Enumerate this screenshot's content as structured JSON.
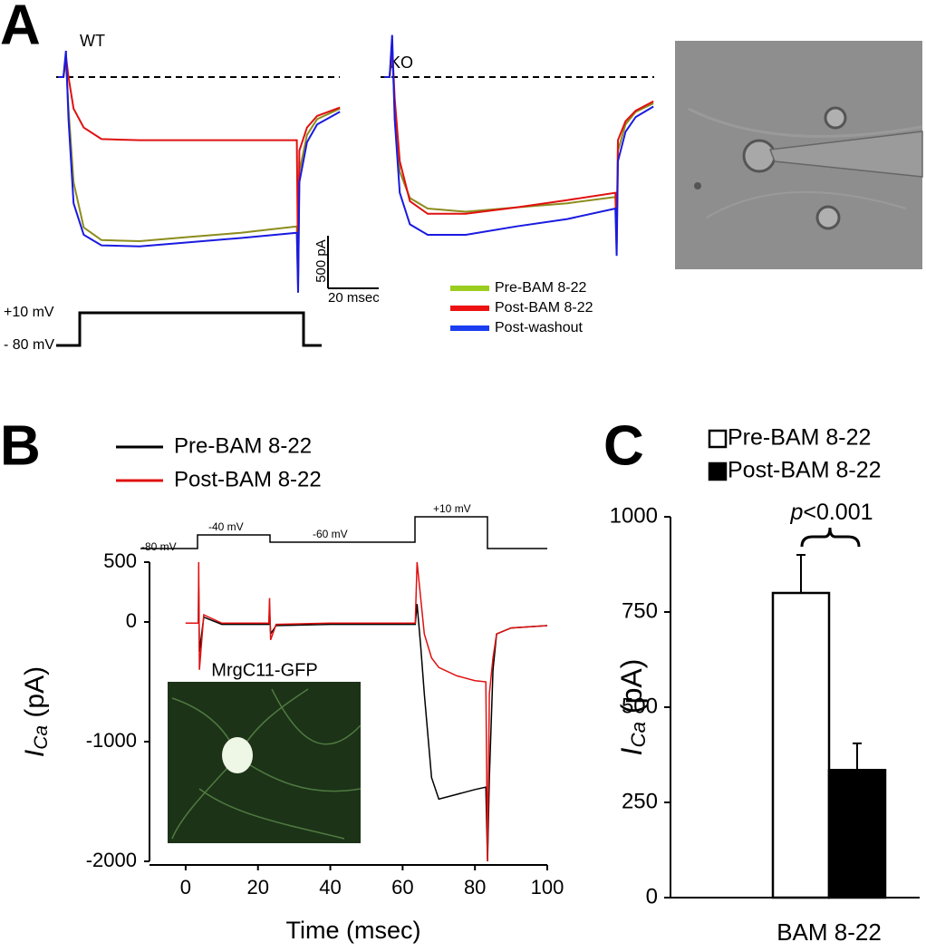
{
  "panel_labels": [
    "A",
    "B",
    "C"
  ],
  "chart_data": [
    {
      "type": "line",
      "title": "WT",
      "x": [
        -2,
        0,
        1,
        2,
        4,
        8,
        15,
        30,
        50,
        70,
        92,
        92.5,
        93,
        96,
        100,
        109
      ],
      "series": [
        {
          "name": "Pre-BAM 8-22",
          "color": "#8c8c1e",
          "values": [
            0,
            0,
            150,
            -300,
            -1000,
            -1430,
            -1550,
            -1560,
            -1520,
            -1480,
            -1420,
            -2000,
            -900,
            -550,
            -400,
            -300
          ]
        },
        {
          "name": "Post-BAM 8-22",
          "color": "#e01010",
          "values": [
            0,
            0,
            200,
            0,
            -300,
            -480,
            -590,
            -600,
            -600,
            -600,
            -600,
            -1900,
            -700,
            -480,
            -370,
            -290
          ]
        },
        {
          "name": "Post-washout",
          "color": "#1a1ae0",
          "values": [
            0,
            0,
            250,
            -400,
            -1200,
            -1500,
            -1600,
            -1610,
            -1570,
            -1530,
            -1480,
            -2050,
            -1000,
            -620,
            -450,
            -330
          ]
        }
      ],
      "legend_colors": [
        "#9acd1e",
        "#ee1111",
        "#1a3ef0"
      ],
      "scale_bar": {
        "y": 500,
        "y_label": "500 pA",
        "x": 20,
        "x_label": "20 msec"
      },
      "protocol_labels": [
        "+10 mV",
        "- 80 mV"
      ]
    },
    {
      "type": "line",
      "title": "KO",
      "x": [
        -2,
        0,
        1,
        2,
        4,
        8,
        15,
        30,
        50,
        70,
        89,
        89.5,
        90,
        93,
        97,
        104
      ],
      "series": [
        {
          "name": "Pre-BAM 8-22",
          "color": "#8c8c1e",
          "values": [
            0,
            0,
            250,
            -300,
            -900,
            -1150,
            -1250,
            -1280,
            -1240,
            -1200,
            -1140,
            -1600,
            -700,
            -450,
            -330,
            -250
          ]
        },
        {
          "name": "Post-BAM 8-22",
          "color": "#e01010",
          "values": [
            0,
            0,
            300,
            -200,
            -800,
            -1180,
            -1300,
            -1300,
            -1240,
            -1170,
            -1100,
            -1500,
            -600,
            -420,
            -320,
            -230
          ]
        },
        {
          "name": "Post-washout",
          "color": "#1a1ae0",
          "values": [
            0,
            0,
            400,
            -400,
            -1100,
            -1400,
            -1500,
            -1500,
            -1420,
            -1350,
            -1250,
            -1700,
            -800,
            -520,
            -380,
            -280
          ]
        }
      ]
    },
    {
      "type": "line",
      "x": [
        0,
        3.5,
        3.6,
        3.8,
        5,
        10,
        20,
        23,
        23.2,
        23.5,
        25,
        40,
        60,
        63.5,
        64,
        65,
        66,
        68,
        70,
        75,
        80,
        83,
        83.5,
        84,
        85,
        86,
        90,
        100
      ],
      "series": [
        {
          "name": "Pre-BAM 8-22",
          "color": "#000000",
          "values": [
            -10,
            -10,
            300,
            -250,
            40,
            -20,
            -20,
            -20,
            100,
            -100,
            -30,
            -20,
            -20,
            -20,
            150,
            -200,
            -600,
            -1300,
            -1480,
            -1440,
            -1400,
            -1380,
            -2000,
            -1300,
            -400,
            -100,
            -50,
            -30
          ]
        },
        {
          "name": "Post-BAM 8-22",
          "color": "#e01010",
          "values": [
            -10,
            -10,
            500,
            -400,
            60,
            -10,
            -10,
            -10,
            200,
            -150,
            -20,
            -10,
            -10,
            -10,
            500,
            200,
            -100,
            -300,
            -380,
            -450,
            -490,
            -500,
            -2000,
            -600,
            -300,
            -100,
            -50,
            -30
          ]
        }
      ],
      "xlim": [
        -10,
        100
      ],
      "ylim": [
        -2000,
        500
      ],
      "xticks": [
        0,
        20,
        40,
        60,
        80,
        100
      ],
      "yticks": [
        500,
        0,
        -1000,
        -2000
      ],
      "x_label": "Time (msec)",
      "y_label": [
        "I",
        "Ca",
        " (pA)"
      ],
      "protocol_labels": [
        "-80 mV",
        "-40 mV",
        "-60 mV",
        "+10 mV"
      ],
      "inset_label": "MrgC11-GFP"
    },
    {
      "type": "bar",
      "categories": [
        "BAM 8-22"
      ],
      "series": [
        {
          "name": "Pre-BAM 8-22",
          "color": "#ffffff",
          "values": [
            800
          ],
          "errors": [
            100
          ]
        },
        {
          "name": "Post-BAM 8-22",
          "color": "#000000",
          "values": [
            335
          ],
          "errors": [
            70
          ]
        }
      ],
      "ylim": [
        0,
        1000
      ],
      "yticks": [
        0,
        250,
        500,
        750,
        1000
      ],
      "y_label": [
        "I",
        "Ca",
        " (pA)"
      ],
      "annotation": [
        "p",
        "<0.001"
      ]
    }
  ]
}
